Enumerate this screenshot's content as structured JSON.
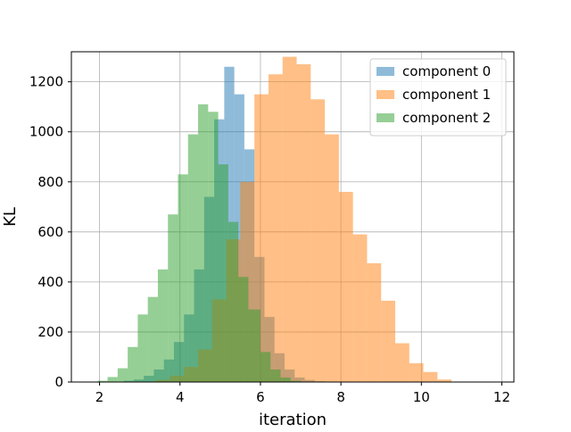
{
  "chart_data": {
    "type": "histogram",
    "xlabel": "iteration",
    "ylabel": "KL",
    "xlim": [
      1.3,
      12.3
    ],
    "ylim": [
      0,
      1320
    ],
    "x_ticks": [
      2,
      4,
      6,
      8,
      10,
      12
    ],
    "y_ticks": [
      0,
      200,
      400,
      600,
      800,
      1000,
      1200
    ],
    "grid": true,
    "legend_position": "top-right",
    "bar_alpha": 0.5,
    "series": [
      {
        "name": "component 0",
        "color": "#1f77b4",
        "bin_edges": [
          2.6,
          2.85,
          3.1,
          3.35,
          3.6,
          3.85,
          4.1,
          4.35,
          4.6,
          4.85,
          5.1,
          5.35,
          5.6,
          5.85,
          6.1,
          6.35,
          6.6,
          6.85,
          7.1,
          7.35,
          7.6
        ],
        "counts": [
          5,
          10,
          25,
          50,
          90,
          160,
          270,
          450,
          740,
          1050,
          1260,
          1150,
          930,
          500,
          260,
          115,
          50,
          18,
          8,
          3
        ]
      },
      {
        "name": "component 1",
        "color": "#ff7f0e",
        "bin_edges": [
          3.4,
          3.75,
          4.1,
          4.45,
          4.8,
          5.15,
          5.5,
          5.85,
          6.2,
          6.55,
          6.9,
          7.25,
          7.6,
          7.95,
          8.3,
          8.65,
          9.0,
          9.35,
          9.7,
          10.05,
          10.4,
          10.75
        ],
        "counts": [
          8,
          25,
          60,
          130,
          330,
          570,
          800,
          1150,
          1230,
          1300,
          1270,
          1130,
          990,
          760,
          590,
          475,
          325,
          155,
          75,
          40,
          10
        ]
      },
      {
        "name": "component 2",
        "color": "#2ca02c",
        "bin_edges": [
          1.95,
          2.2,
          2.45,
          2.7,
          2.95,
          3.2,
          3.45,
          3.7,
          3.95,
          4.2,
          4.45,
          4.7,
          4.95,
          5.2,
          5.45,
          5.7,
          6.0,
          6.25,
          6.5,
          6.75,
          7.0
        ],
        "counts": [
          5,
          20,
          55,
          140,
          270,
          340,
          450,
          670,
          830,
          990,
          1110,
          1080,
          870,
          640,
          420,
          290,
          120,
          50,
          18,
          5
        ]
      }
    ]
  }
}
